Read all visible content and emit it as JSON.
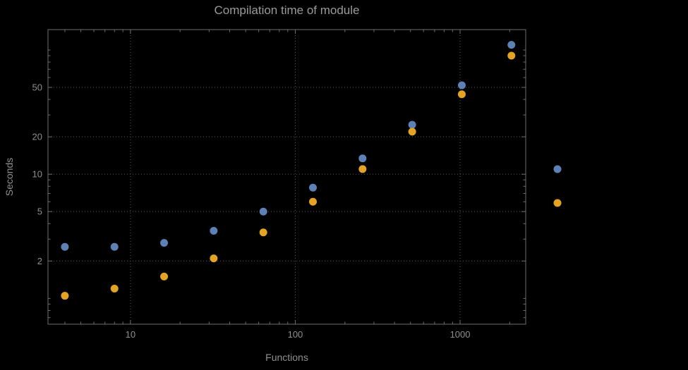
{
  "chart_data": {
    "type": "scatter",
    "title": "Compilation time of module",
    "xlabel": "Functions",
    "ylabel": "Seconds",
    "xscale": "log",
    "yscale": "log",
    "grid": "dotted",
    "xlim": [
      3.16,
      2500
    ],
    "ylim": [
      0.62,
      146
    ],
    "x_ticks": [
      10,
      100,
      1000
    ],
    "y_ticks": [
      2,
      5,
      10,
      20,
      50
    ],
    "x": [
      4,
      8,
      16,
      32,
      64,
      128,
      256,
      512,
      1024,
      2048
    ],
    "series": [
      {
        "name": "blue",
        "color": "#5e81b5",
        "values": [
          2.6,
          2.6,
          2.8,
          3.5,
          5.0,
          7.8,
          13.4,
          25,
          52,
          110
        ]
      },
      {
        "name": "orange",
        "color": "#e3a324",
        "values": [
          1.05,
          1.2,
          1.5,
          2.1,
          3.4,
          6.0,
          11.0,
          22,
          44,
          90
        ]
      }
    ],
    "legend": {
      "position": "right",
      "entries": [
        {
          "name": "blue",
          "color": "#5e81b5",
          "label": ""
        },
        {
          "name": "orange",
          "color": "#e3a324",
          "label": ""
        }
      ]
    }
  },
  "theme": {
    "background": "#000000",
    "frame": "#6e6e6e",
    "grid": "#545454",
    "text": "#8f8f8f",
    "title": "#9a9a9a"
  }
}
